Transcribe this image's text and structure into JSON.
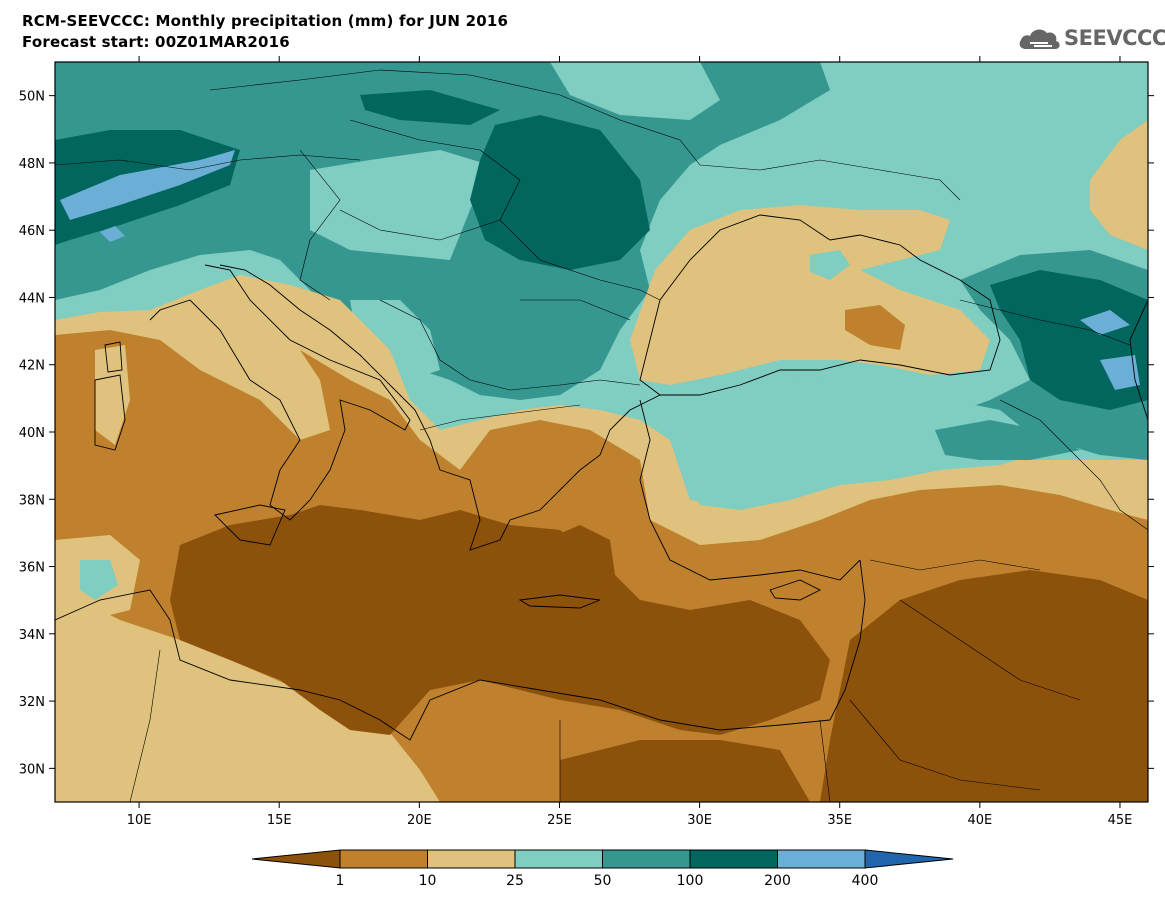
{
  "header": {
    "title": "RCM-SEEVCCC: Monthly precipitation (mm) for JUN 2016",
    "subtitle": "Forecast start: 00Z01MAR2016",
    "logo_text": "SEEVCCC",
    "logo_icon": "cloud-icon"
  },
  "map": {
    "lon_range": [
      7,
      46
    ],
    "lat_range": [
      29,
      51
    ],
    "lat_ticks": [
      {
        "value": 50,
        "label": "50N"
      },
      {
        "value": 48,
        "label": "48N"
      },
      {
        "value": 46,
        "label": "46N"
      },
      {
        "value": 44,
        "label": "44N"
      },
      {
        "value": 42,
        "label": "42N"
      },
      {
        "value": 40,
        "label": "40N"
      },
      {
        "value": 38,
        "label": "38N"
      },
      {
        "value": 36,
        "label": "36N"
      },
      {
        "value": 34,
        "label": "34N"
      },
      {
        "value": 32,
        "label": "32N"
      },
      {
        "value": 30,
        "label": "30N"
      }
    ],
    "lon_ticks": [
      {
        "value": 10,
        "label": "10E"
      },
      {
        "value": 15,
        "label": "15E"
      },
      {
        "value": 20,
        "label": "20E"
      },
      {
        "value": 25,
        "label": "25E"
      },
      {
        "value": 30,
        "label": "30E"
      },
      {
        "value": 35,
        "label": "35E"
      },
      {
        "value": 40,
        "label": "40E"
      },
      {
        "value": 45,
        "label": "45E"
      }
    ]
  },
  "colorbar": {
    "labels": [
      "1",
      "10",
      "25",
      "50",
      "100",
      "200",
      "400"
    ],
    "colors": [
      "#8c510a",
      "#bf812d",
      "#dfc27d",
      "#80cdc1",
      "#35978f",
      "#01665e",
      "#6baed6",
      "#2166ac"
    ]
  }
}
